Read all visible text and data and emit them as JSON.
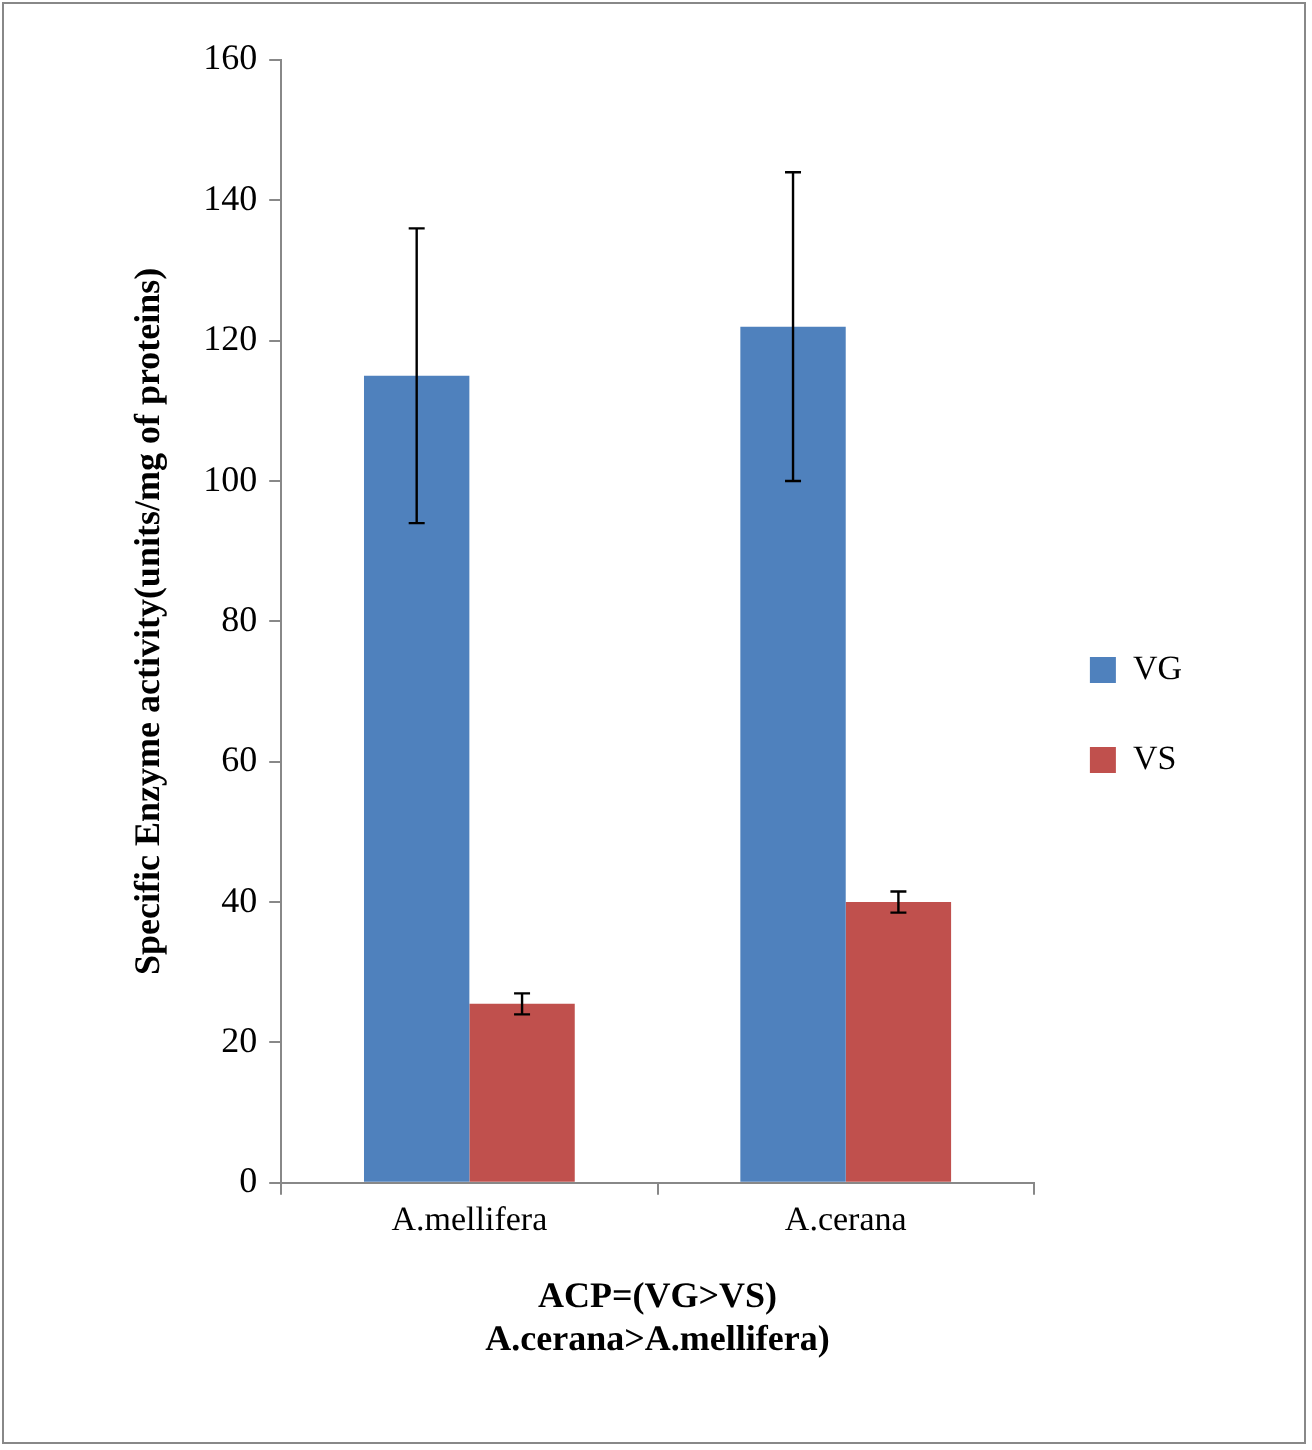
{
  "chart_data": {
    "type": "bar",
    "xlabel": "ACP=(VG>VS)\nA.cerana>A.mellifera)",
    "ylabel": "Specific Enzyme activity(units/mg of proteins)",
    "categories": [
      "A.mellifera",
      "A.cerana"
    ],
    "series": [
      {
        "name": "VG",
        "color": "#4f81bd",
        "values": [
          115,
          122
        ],
        "errors": [
          21,
          22
        ]
      },
      {
        "name": "VS",
        "color": "#c0504d",
        "values": [
          25.5,
          40
        ],
        "errors": [
          1.5,
          1.5
        ]
      }
    ],
    "ylim": [
      0,
      160
    ],
    "yticks": [
      0,
      20,
      40,
      60,
      80,
      100,
      120,
      140,
      160
    ],
    "grid": false,
    "legend": "right"
  }
}
